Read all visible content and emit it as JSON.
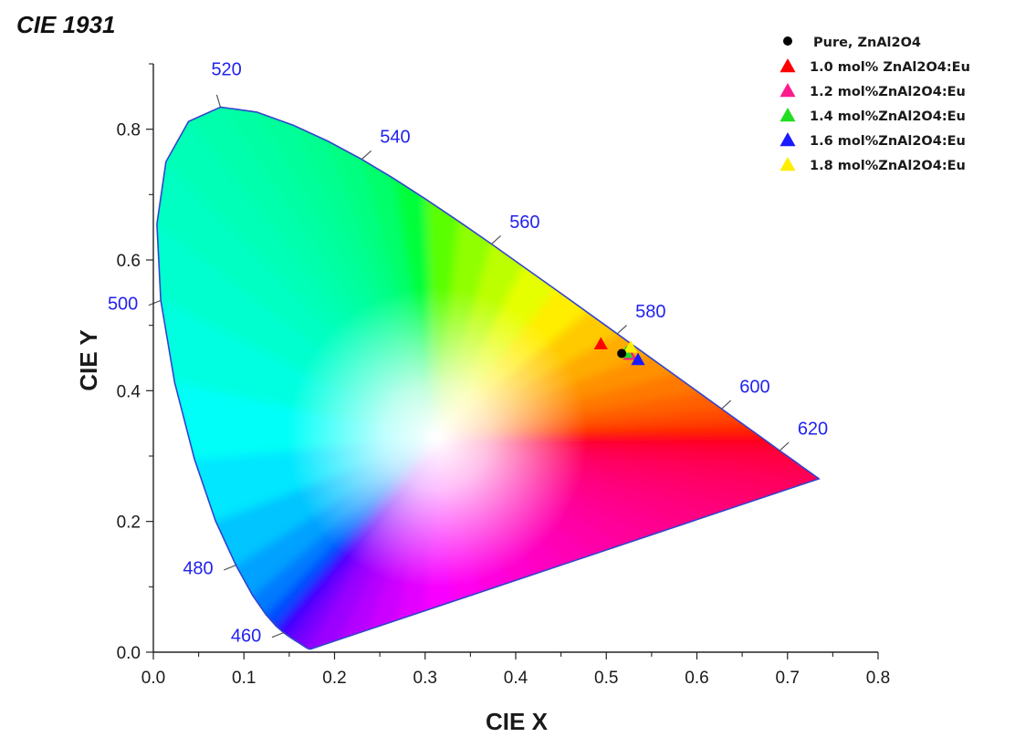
{
  "chart_data": {
    "type": "scatter",
    "title": "CIE 1931",
    "xlabel": "CIE X",
    "ylabel": "CIE Y",
    "xlim": [
      0.0,
      0.8
    ],
    "ylim": [
      0.0,
      0.9
    ],
    "x_ticks": [
      "0.0",
      "0.1",
      "0.2",
      "0.3",
      "0.4",
      "0.5",
      "0.6",
      "0.7",
      "0.8"
    ],
    "y_ticks": [
      "0.0",
      "0.2",
      "0.4",
      "0.6",
      "0.8"
    ],
    "grid": false,
    "legend_position": "top-right",
    "white_point": {
      "x": 0.313,
      "y": 0.329
    },
    "wavelength_labels": [
      {
        "label": "460",
        "x": 0.144,
        "y": 0.03,
        "side": "left"
      },
      {
        "label": "480",
        "x": 0.091,
        "y": 0.133,
        "side": "left"
      },
      {
        "label": "500",
        "x": 0.008,
        "y": 0.538,
        "side": "left"
      },
      {
        "label": "520",
        "x": 0.074,
        "y": 0.834,
        "side": "up"
      },
      {
        "label": "540",
        "x": 0.23,
        "y": 0.754,
        "side": "right"
      },
      {
        "label": "560",
        "x": 0.373,
        "y": 0.624,
        "side": "right"
      },
      {
        "label": "580",
        "x": 0.512,
        "y": 0.487,
        "side": "right"
      },
      {
        "label": "600",
        "x": 0.627,
        "y": 0.372,
        "side": "right"
      },
      {
        "label": "620",
        "x": 0.691,
        "y": 0.308,
        "side": "right"
      }
    ],
    "series": [
      {
        "name": "Pure, ZnAl2O4",
        "marker": "circle",
        "color": "#000000",
        "x": 0.517,
        "y": 0.457
      },
      {
        "name": "1.0 mol% ZnAl2O4:Eu",
        "marker": "triangle",
        "color": "#ff0000",
        "x": 0.494,
        "y": 0.471
      },
      {
        "name": "1.2 mol%ZnAl2O4:Eu",
        "marker": "triangle",
        "color": "#ff1a8c",
        "x": 0.526,
        "y": 0.455
      },
      {
        "name": "1.4 mol%ZnAl2O4:Eu",
        "marker": "triangle",
        "color": "#22dd22",
        "x": 0.522,
        "y": 0.458
      },
      {
        "name": "1.6 mol%ZnAl2O4:Eu",
        "marker": "triangle",
        "color": "#1a1aff",
        "x": 0.535,
        "y": 0.447
      },
      {
        "name": "1.8 mol%ZnAl2O4:Eu",
        "marker": "triangle",
        "color": "#ffee00",
        "x": 0.527,
        "y": 0.466
      }
    ]
  }
}
